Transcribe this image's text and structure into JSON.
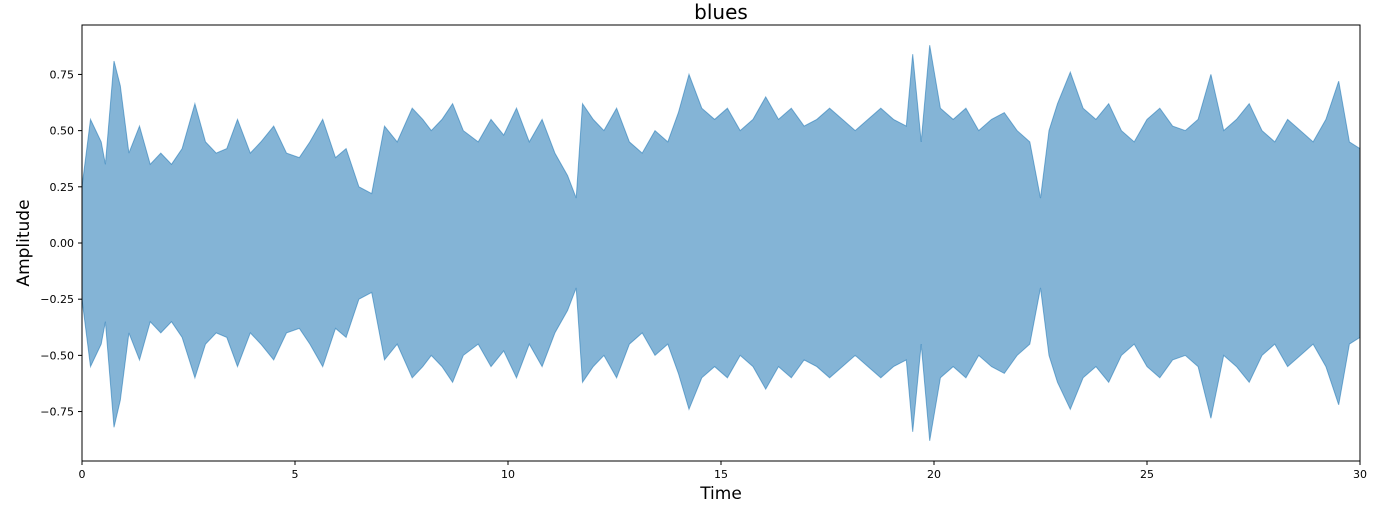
{
  "chart_data": {
    "type": "area",
    "title": "blues",
    "xlabel": "Time",
    "ylabel": "Amplitude",
    "xlim": [
      0,
      30
    ],
    "ylim": [
      -0.97,
      0.97
    ],
    "xticks": [
      0,
      5,
      10,
      15,
      20,
      25,
      30
    ],
    "xtick_labels": [
      "0",
      "5",
      "10",
      "15",
      "20",
      "25",
      "30"
    ],
    "yticks": [
      -0.75,
      -0.5,
      -0.25,
      0.0,
      0.25,
      0.5,
      0.75
    ],
    "ytick_labels": [
      "−0.75",
      "−0.50",
      "−0.25",
      "0.00",
      "0.25",
      "0.50",
      "0.75"
    ],
    "grid": false,
    "series": [
      {
        "color": "#1f77b4",
        "opacity": 0.55,
        "x": [
          0.0,
          0.2,
          0.45,
          0.55,
          0.75,
          0.9,
          1.1,
          1.35,
          1.6,
          1.85,
          2.1,
          2.35,
          2.65,
          2.9,
          3.15,
          3.4,
          3.65,
          3.95,
          4.2,
          4.5,
          4.8,
          5.1,
          5.35,
          5.65,
          5.95,
          6.2,
          6.5,
          6.8,
          7.1,
          7.4,
          7.75,
          8.0,
          8.2,
          8.45,
          8.7,
          8.95,
          9.3,
          9.6,
          9.9,
          10.2,
          10.5,
          10.8,
          11.1,
          11.4,
          11.6,
          11.75,
          12.0,
          12.25,
          12.55,
          12.85,
          13.15,
          13.45,
          13.75,
          14.0,
          14.25,
          14.55,
          14.85,
          15.15,
          15.45,
          15.75,
          16.05,
          16.35,
          16.65,
          16.95,
          17.25,
          17.55,
          17.85,
          18.15,
          18.45,
          18.75,
          19.05,
          19.35,
          19.5,
          19.7,
          19.9,
          20.15,
          20.45,
          20.75,
          21.05,
          21.35,
          21.65,
          21.95,
          22.25,
          22.5,
          22.7,
          22.9,
          23.2,
          23.5,
          23.8,
          24.1,
          24.4,
          24.7,
          25.0,
          25.3,
          25.6,
          25.9,
          26.2,
          26.5,
          26.8,
          27.1,
          27.4,
          27.7,
          28.0,
          28.3,
          28.6,
          28.9,
          29.2,
          29.5,
          29.75,
          30.0
        ],
        "upper": [
          0.25,
          0.55,
          0.45,
          0.35,
          0.81,
          0.7,
          0.4,
          0.52,
          0.35,
          0.4,
          0.35,
          0.42,
          0.62,
          0.45,
          0.4,
          0.42,
          0.55,
          0.4,
          0.45,
          0.52,
          0.4,
          0.38,
          0.45,
          0.55,
          0.38,
          0.42,
          0.25,
          0.22,
          0.52,
          0.45,
          0.6,
          0.55,
          0.5,
          0.55,
          0.62,
          0.5,
          0.45,
          0.55,
          0.48,
          0.6,
          0.45,
          0.55,
          0.4,
          0.3,
          0.2,
          0.62,
          0.55,
          0.5,
          0.6,
          0.45,
          0.4,
          0.5,
          0.45,
          0.58,
          0.75,
          0.6,
          0.55,
          0.6,
          0.5,
          0.55,
          0.65,
          0.55,
          0.6,
          0.52,
          0.55,
          0.6,
          0.55,
          0.5,
          0.55,
          0.6,
          0.55,
          0.52,
          0.84,
          0.45,
          0.88,
          0.6,
          0.55,
          0.6,
          0.5,
          0.55,
          0.58,
          0.5,
          0.45,
          0.2,
          0.5,
          0.62,
          0.76,
          0.6,
          0.55,
          0.62,
          0.5,
          0.45,
          0.55,
          0.6,
          0.52,
          0.5,
          0.55,
          0.75,
          0.5,
          0.55,
          0.62,
          0.5,
          0.45,
          0.55,
          0.5,
          0.45,
          0.55,
          0.72,
          0.45,
          0.42
        ],
        "lower": [
          -0.25,
          -0.55,
          -0.45,
          -0.35,
          -0.82,
          -0.7,
          -0.4,
          -0.52,
          -0.35,
          -0.4,
          -0.35,
          -0.42,
          -0.6,
          -0.45,
          -0.4,
          -0.42,
          -0.55,
          -0.4,
          -0.45,
          -0.52,
          -0.4,
          -0.38,
          -0.45,
          -0.55,
          -0.38,
          -0.42,
          -0.25,
          -0.22,
          -0.52,
          -0.45,
          -0.6,
          -0.55,
          -0.5,
          -0.55,
          -0.62,
          -0.5,
          -0.45,
          -0.55,
          -0.48,
          -0.6,
          -0.45,
          -0.55,
          -0.4,
          -0.3,
          -0.2,
          -0.62,
          -0.55,
          -0.5,
          -0.6,
          -0.45,
          -0.4,
          -0.5,
          -0.45,
          -0.58,
          -0.74,
          -0.6,
          -0.55,
          -0.6,
          -0.5,
          -0.55,
          -0.65,
          -0.55,
          -0.6,
          -0.52,
          -0.55,
          -0.6,
          -0.55,
          -0.5,
          -0.55,
          -0.6,
          -0.55,
          -0.52,
          -0.84,
          -0.45,
          -0.88,
          -0.6,
          -0.55,
          -0.6,
          -0.5,
          -0.55,
          -0.58,
          -0.5,
          -0.45,
          -0.2,
          -0.5,
          -0.62,
          -0.74,
          -0.6,
          -0.55,
          -0.62,
          -0.5,
          -0.45,
          -0.55,
          -0.6,
          -0.52,
          -0.5,
          -0.55,
          -0.78,
          -0.5,
          -0.55,
          -0.62,
          -0.5,
          -0.45,
          -0.55,
          -0.5,
          -0.45,
          -0.55,
          -0.72,
          -0.45,
          -0.42
        ]
      }
    ]
  }
}
